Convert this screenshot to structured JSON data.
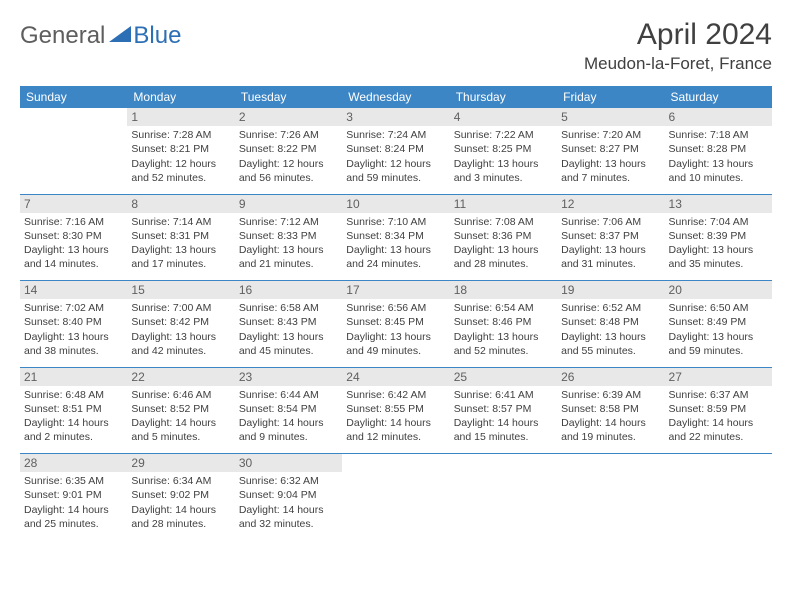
{
  "logo": {
    "general": "General",
    "blue": "Blue"
  },
  "title": "April 2024",
  "location": "Meudon-la-Foret, France",
  "colors": {
    "header_bg": "#3d86c6",
    "header_fg": "#ffffff",
    "daynum_bg": "#e8e8e8",
    "text": "#404040",
    "logo_gray": "#5e5e5e",
    "logo_blue": "#2d6fb4"
  },
  "weekdays": [
    "Sunday",
    "Monday",
    "Tuesday",
    "Wednesday",
    "Thursday",
    "Friday",
    "Saturday"
  ],
  "weeks": [
    [
      null,
      {
        "d": "1",
        "sr": "7:28 AM",
        "ss": "8:21 PM",
        "dl1": "Daylight: 12 hours",
        "dl2": "and 52 minutes."
      },
      {
        "d": "2",
        "sr": "7:26 AM",
        "ss": "8:22 PM",
        "dl1": "Daylight: 12 hours",
        "dl2": "and 56 minutes."
      },
      {
        "d": "3",
        "sr": "7:24 AM",
        "ss": "8:24 PM",
        "dl1": "Daylight: 12 hours",
        "dl2": "and 59 minutes."
      },
      {
        "d": "4",
        "sr": "7:22 AM",
        "ss": "8:25 PM",
        "dl1": "Daylight: 13 hours",
        "dl2": "and 3 minutes."
      },
      {
        "d": "5",
        "sr": "7:20 AM",
        "ss": "8:27 PM",
        "dl1": "Daylight: 13 hours",
        "dl2": "and 7 minutes."
      },
      {
        "d": "6",
        "sr": "7:18 AM",
        "ss": "8:28 PM",
        "dl1": "Daylight: 13 hours",
        "dl2": "and 10 minutes."
      }
    ],
    [
      {
        "d": "7",
        "sr": "7:16 AM",
        "ss": "8:30 PM",
        "dl1": "Daylight: 13 hours",
        "dl2": "and 14 minutes."
      },
      {
        "d": "8",
        "sr": "7:14 AM",
        "ss": "8:31 PM",
        "dl1": "Daylight: 13 hours",
        "dl2": "and 17 minutes."
      },
      {
        "d": "9",
        "sr": "7:12 AM",
        "ss": "8:33 PM",
        "dl1": "Daylight: 13 hours",
        "dl2": "and 21 minutes."
      },
      {
        "d": "10",
        "sr": "7:10 AM",
        "ss": "8:34 PM",
        "dl1": "Daylight: 13 hours",
        "dl2": "and 24 minutes."
      },
      {
        "d": "11",
        "sr": "7:08 AM",
        "ss": "8:36 PM",
        "dl1": "Daylight: 13 hours",
        "dl2": "and 28 minutes."
      },
      {
        "d": "12",
        "sr": "7:06 AM",
        "ss": "8:37 PM",
        "dl1": "Daylight: 13 hours",
        "dl2": "and 31 minutes."
      },
      {
        "d": "13",
        "sr": "7:04 AM",
        "ss": "8:39 PM",
        "dl1": "Daylight: 13 hours",
        "dl2": "and 35 minutes."
      }
    ],
    [
      {
        "d": "14",
        "sr": "7:02 AM",
        "ss": "8:40 PM",
        "dl1": "Daylight: 13 hours",
        "dl2": "and 38 minutes."
      },
      {
        "d": "15",
        "sr": "7:00 AM",
        "ss": "8:42 PM",
        "dl1": "Daylight: 13 hours",
        "dl2": "and 42 minutes."
      },
      {
        "d": "16",
        "sr": "6:58 AM",
        "ss": "8:43 PM",
        "dl1": "Daylight: 13 hours",
        "dl2": "and 45 minutes."
      },
      {
        "d": "17",
        "sr": "6:56 AM",
        "ss": "8:45 PM",
        "dl1": "Daylight: 13 hours",
        "dl2": "and 49 minutes."
      },
      {
        "d": "18",
        "sr": "6:54 AM",
        "ss": "8:46 PM",
        "dl1": "Daylight: 13 hours",
        "dl2": "and 52 minutes."
      },
      {
        "d": "19",
        "sr": "6:52 AM",
        "ss": "8:48 PM",
        "dl1": "Daylight: 13 hours",
        "dl2": "and 55 minutes."
      },
      {
        "d": "20",
        "sr": "6:50 AM",
        "ss": "8:49 PM",
        "dl1": "Daylight: 13 hours",
        "dl2": "and 59 minutes."
      }
    ],
    [
      {
        "d": "21",
        "sr": "6:48 AM",
        "ss": "8:51 PM",
        "dl1": "Daylight: 14 hours",
        "dl2": "and 2 minutes."
      },
      {
        "d": "22",
        "sr": "6:46 AM",
        "ss": "8:52 PM",
        "dl1": "Daylight: 14 hours",
        "dl2": "and 5 minutes."
      },
      {
        "d": "23",
        "sr": "6:44 AM",
        "ss": "8:54 PM",
        "dl1": "Daylight: 14 hours",
        "dl2": "and 9 minutes."
      },
      {
        "d": "24",
        "sr": "6:42 AM",
        "ss": "8:55 PM",
        "dl1": "Daylight: 14 hours",
        "dl2": "and 12 minutes."
      },
      {
        "d": "25",
        "sr": "6:41 AM",
        "ss": "8:57 PM",
        "dl1": "Daylight: 14 hours",
        "dl2": "and 15 minutes."
      },
      {
        "d": "26",
        "sr": "6:39 AM",
        "ss": "8:58 PM",
        "dl1": "Daylight: 14 hours",
        "dl2": "and 19 minutes."
      },
      {
        "d": "27",
        "sr": "6:37 AM",
        "ss": "8:59 PM",
        "dl1": "Daylight: 14 hours",
        "dl2": "and 22 minutes."
      }
    ],
    [
      {
        "d": "28",
        "sr": "6:35 AM",
        "ss": "9:01 PM",
        "dl1": "Daylight: 14 hours",
        "dl2": "and 25 minutes."
      },
      {
        "d": "29",
        "sr": "6:34 AM",
        "ss": "9:02 PM",
        "dl1": "Daylight: 14 hours",
        "dl2": "and 28 minutes."
      },
      {
        "d": "30",
        "sr": "6:32 AM",
        "ss": "9:04 PM",
        "dl1": "Daylight: 14 hours",
        "dl2": "and 32 minutes."
      },
      null,
      null,
      null,
      null
    ]
  ]
}
